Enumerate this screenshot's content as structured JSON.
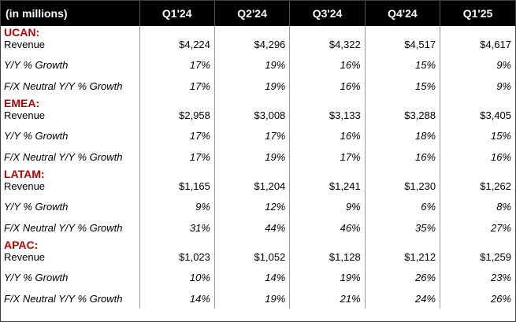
{
  "header": {
    "label": "(in millions)",
    "quarters": [
      "Q1'24",
      "Q2'24",
      "Q3'24",
      "Q4'24",
      "Q1'25"
    ]
  },
  "regions": [
    {
      "name": "UCAN:",
      "rows": [
        {
          "label": "Revenue",
          "values": [
            "$4,224",
            "$4,296",
            "$4,322",
            "$4,517",
            "$4,617"
          ]
        },
        {
          "label": "Y/Y % Growth",
          "values": [
            "17%",
            "19%",
            "16%",
            "15%",
            "9%"
          ]
        },
        {
          "label": "F/X Neutral Y/Y % Growth",
          "values": [
            "17%",
            "19%",
            "16%",
            "15%",
            "9%"
          ]
        }
      ]
    },
    {
      "name": "EMEA:",
      "rows": [
        {
          "label": "Revenue",
          "values": [
            "$2,958",
            "$3,008",
            "$3,133",
            "$3,288",
            "$3,405"
          ]
        },
        {
          "label": "Y/Y % Growth",
          "values": [
            "17%",
            "17%",
            "16%",
            "18%",
            "15%"
          ]
        },
        {
          "label": "F/X Neutral Y/Y % Growth",
          "values": [
            "17%",
            "19%",
            "17%",
            "16%",
            "16%"
          ]
        }
      ]
    },
    {
      "name": "LATAM:",
      "rows": [
        {
          "label": "Revenue",
          "values": [
            "$1,165",
            "$1,204",
            "$1,241",
            "$1,230",
            "$1,262"
          ]
        },
        {
          "label": "Y/Y % Growth",
          "values": [
            "9%",
            "12%",
            "9%",
            "6%",
            "8%"
          ]
        },
        {
          "label": "F/X Neutral Y/Y % Growth",
          "values": [
            "31%",
            "44%",
            "46%",
            "35%",
            "27%"
          ]
        }
      ]
    },
    {
      "name": "APAC:",
      "rows": [
        {
          "label": "Revenue",
          "values": [
            "$1,023",
            "$1,052",
            "$1,128",
            "$1,212",
            "$1,259"
          ]
        },
        {
          "label": "Y/Y % Growth",
          "values": [
            "10%",
            "14%",
            "19%",
            "26%",
            "23%"
          ]
        },
        {
          "label": "F/X Neutral Y/Y % Growth",
          "values": [
            "14%",
            "19%",
            "21%",
            "24%",
            "26%"
          ]
        }
      ]
    }
  ],
  "colors": {
    "header_bg": "#000000",
    "region_label": "#c00000"
  }
}
